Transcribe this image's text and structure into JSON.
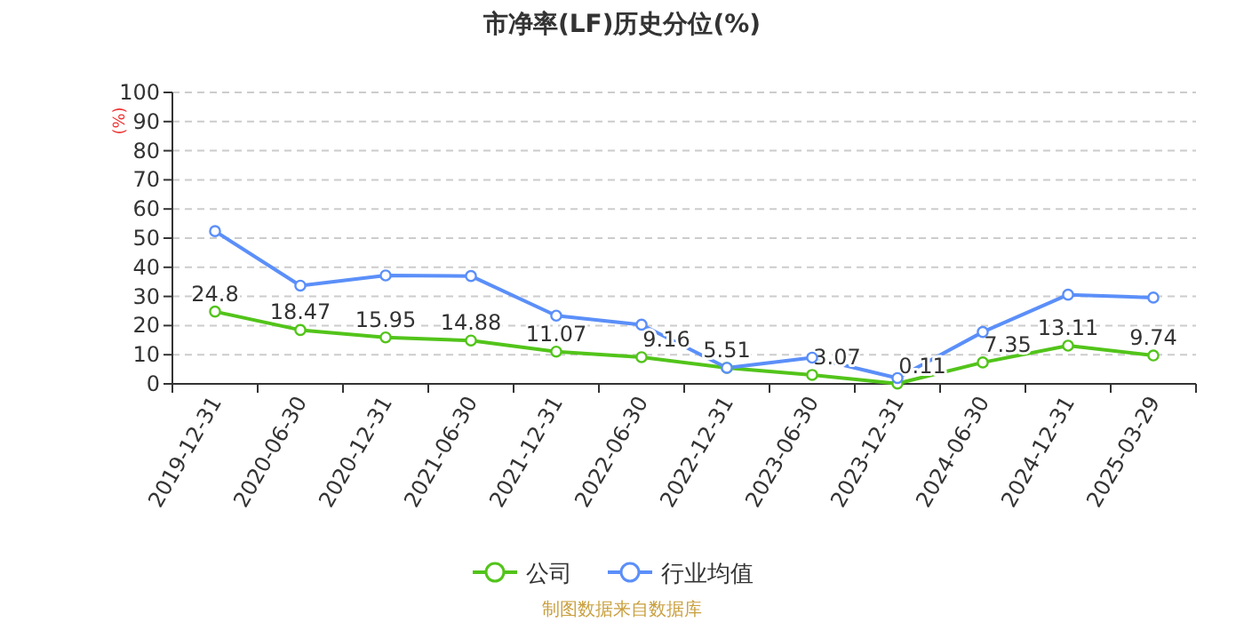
{
  "chart_data": {
    "type": "line",
    "title": "市净率(LF)历史分位(%)",
    "ylabel": "(%)",
    "categories": [
      "2019-12-31",
      "2020-06-30",
      "2020-12-31",
      "2021-06-30",
      "2021-12-31",
      "2022-06-30",
      "2022-12-31",
      "2023-06-30",
      "2023-12-31",
      "2024-06-30",
      "2024-12-31",
      "2025-03-29"
    ],
    "series": [
      {
        "name": "公司",
        "color": "#52c41a",
        "values": [
          24.8,
          18.47,
          15.95,
          14.88,
          11.07,
          9.16,
          5.51,
          3.07,
          0.11,
          7.35,
          13.11,
          9.74
        ],
        "value_labels": [
          "24.8",
          "18.47",
          "15.95",
          "14.88",
          "11.07",
          "9.16",
          "5.51",
          "3.07",
          "0.11",
          "7.35",
          "13.11",
          "9.74"
        ]
      },
      {
        "name": "行业均值",
        "color": "#5b8ff9",
        "values": [
          52.4,
          33.7,
          37.2,
          37,
          23.4,
          20.3,
          5.5,
          9,
          2,
          17.8,
          30.6,
          29.6
        ]
      }
    ],
    "ylim": [
      0,
      100
    ],
    "yticks": [
      0,
      10,
      20,
      30,
      40,
      50,
      60,
      70,
      80,
      90,
      100
    ],
    "grid": "y",
    "legend": "bottom",
    "marker": "circle",
    "line_style": "solid",
    "annotations": [
      "制图数据来自数据库"
    ]
  }
}
